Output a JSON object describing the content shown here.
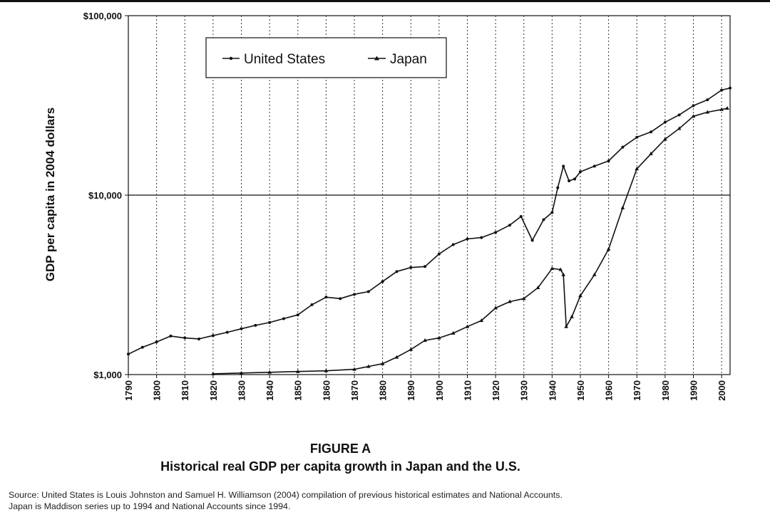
{
  "figure": {
    "label": "FIGURE A",
    "title": "Historical real GDP per capita growth in Japan and the U.S.",
    "source_line1": "Source: United States is Louis Johnston and Samuel H. Williamson (2004) compilation of previous historical estimates and National Accounts.",
    "source_line2": "Japan is Maddison series up to 1994 and National Accounts since 1994."
  },
  "chart_data": {
    "type": "line",
    "title": "Historical real GDP per capita growth in Japan and the U.S.",
    "xlabel": "",
    "ylabel": "GDP per capita in 2004 dollars",
    "y_scale": "log",
    "ylim": [
      1000,
      100000
    ],
    "xlim": [
      1790,
      2003
    ],
    "y_ticks": [
      {
        "value": 1000,
        "label": "$1,000"
      },
      {
        "value": 10000,
        "label": "$10,000"
      },
      {
        "value": 100000,
        "label": "$100,000"
      }
    ],
    "x_ticks": [
      1790,
      1800,
      1810,
      1820,
      1830,
      1840,
      1850,
      1860,
      1870,
      1880,
      1890,
      1900,
      1910,
      1920,
      1930,
      1940,
      1950,
      1960,
      1970,
      1980,
      1990,
      2000
    ],
    "grid": "vertical dotted at each decade; horizontal solid at $10,000",
    "legend_position": "top-left",
    "series": [
      {
        "name": "United States",
        "marker": "dot",
        "color": "#111111",
        "points": [
          [
            1790,
            1300
          ],
          [
            1795,
            1420
          ],
          [
            1800,
            1520
          ],
          [
            1805,
            1640
          ],
          [
            1810,
            1600
          ],
          [
            1815,
            1580
          ],
          [
            1820,
            1650
          ],
          [
            1825,
            1720
          ],
          [
            1830,
            1800
          ],
          [
            1835,
            1880
          ],
          [
            1840,
            1950
          ],
          [
            1845,
            2050
          ],
          [
            1850,
            2150
          ],
          [
            1855,
            2450
          ],
          [
            1860,
            2700
          ],
          [
            1865,
            2650
          ],
          [
            1870,
            2800
          ],
          [
            1875,
            2900
          ],
          [
            1880,
            3300
          ],
          [
            1885,
            3750
          ],
          [
            1890,
            3950
          ],
          [
            1895,
            4000
          ],
          [
            1900,
            4700
          ],
          [
            1905,
            5300
          ],
          [
            1910,
            5700
          ],
          [
            1915,
            5800
          ],
          [
            1920,
            6200
          ],
          [
            1925,
            6800
          ],
          [
            1929,
            7600
          ],
          [
            1933,
            5600
          ],
          [
            1937,
            7300
          ],
          [
            1940,
            8000
          ],
          [
            1942,
            11000
          ],
          [
            1944,
            14500
          ],
          [
            1946,
            12000
          ],
          [
            1948,
            12300
          ],
          [
            1950,
            13500
          ],
          [
            1955,
            14500
          ],
          [
            1960,
            15500
          ],
          [
            1965,
            18500
          ],
          [
            1970,
            21000
          ],
          [
            1975,
            22500
          ],
          [
            1980,
            25500
          ],
          [
            1985,
            28000
          ],
          [
            1990,
            31500
          ],
          [
            1995,
            34000
          ],
          [
            2000,
            38500
          ],
          [
            2003,
            39500
          ]
        ]
      },
      {
        "name": "Japan",
        "marker": "triangle",
        "color": "#111111",
        "points": [
          [
            1820,
            1010
          ],
          [
            1830,
            1020
          ],
          [
            1840,
            1030
          ],
          [
            1850,
            1040
          ],
          [
            1860,
            1050
          ],
          [
            1870,
            1070
          ],
          [
            1875,
            1110
          ],
          [
            1880,
            1150
          ],
          [
            1885,
            1250
          ],
          [
            1890,
            1380
          ],
          [
            1895,
            1550
          ],
          [
            1900,
            1600
          ],
          [
            1905,
            1700
          ],
          [
            1910,
            1850
          ],
          [
            1915,
            2000
          ],
          [
            1920,
            2350
          ],
          [
            1925,
            2550
          ],
          [
            1930,
            2650
          ],
          [
            1935,
            3050
          ],
          [
            1940,
            3900
          ],
          [
            1943,
            3850
          ],
          [
            1944,
            3600
          ],
          [
            1945,
            1850
          ],
          [
            1947,
            2100
          ],
          [
            1950,
            2750
          ],
          [
            1955,
            3600
          ],
          [
            1960,
            5000
          ],
          [
            1965,
            8500
          ],
          [
            1970,
            14000
          ],
          [
            1975,
            17000
          ],
          [
            1980,
            20500
          ],
          [
            1985,
            23500
          ],
          [
            1990,
            27500
          ],
          [
            1995,
            29000
          ],
          [
            2000,
            30000
          ],
          [
            2002,
            30500
          ]
        ]
      }
    ]
  }
}
